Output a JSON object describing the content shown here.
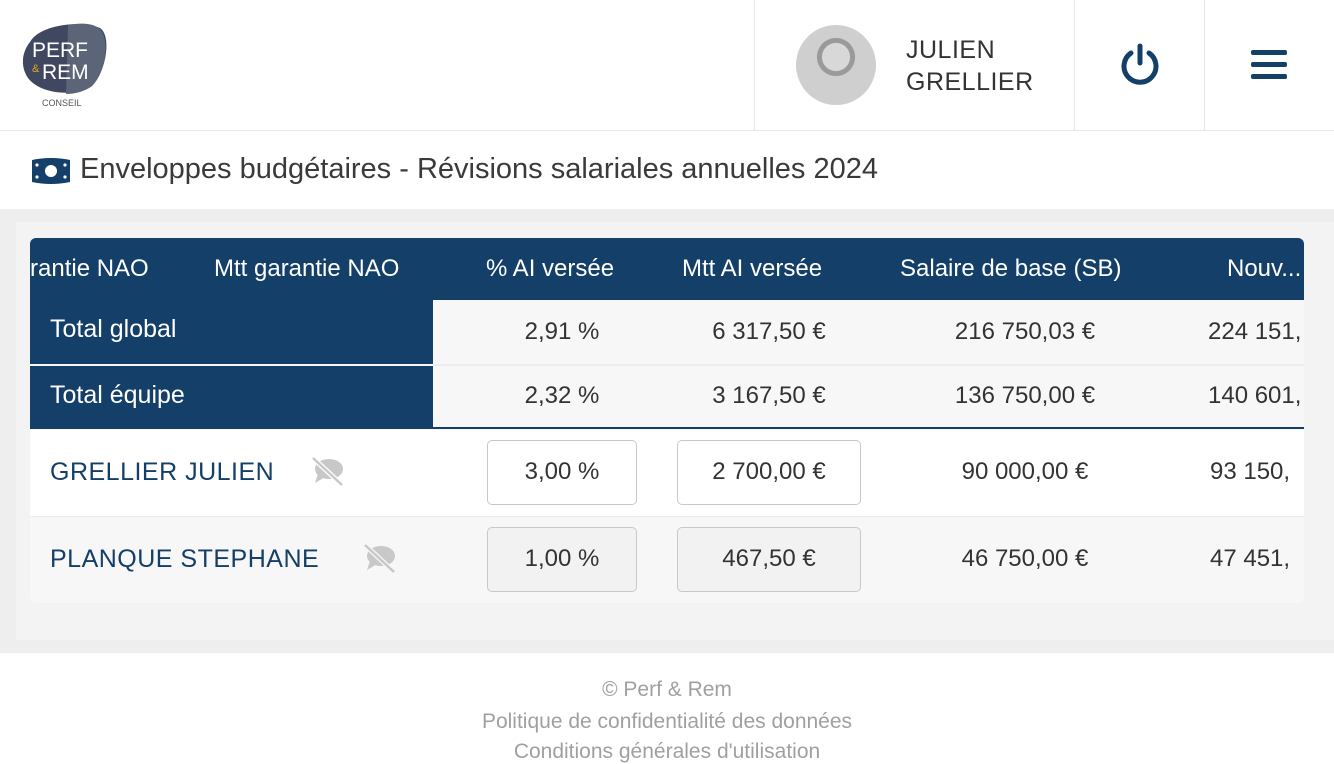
{
  "header": {
    "logo": {
      "line1": "PERF",
      "amp": "&",
      "line2": "REM",
      "sub": "CONSEIL"
    },
    "user": {
      "first": "JULIEN",
      "last": "GRELLIER"
    },
    "icons": {
      "power": "power-icon",
      "menu": "hamburger-menu-icon"
    }
  },
  "page": {
    "title": "Enveloppes budgétaires - Révisions salariales annuelles 2024",
    "icon": "money-bill-icon"
  },
  "table": {
    "columns": [
      "% garantie NAO",
      "Mtt garantie NAO",
      "% AI versée",
      "Mtt AI versée",
      "Salaire de base (SB)",
      "Nouv..."
    ],
    "columns_visible": [
      "rantie NAO",
      "Mtt garantie NAO",
      "% AI versée",
      "Mtt AI versée",
      "Salaire de base (SB)",
      "Nouv."
    ],
    "totals": [
      {
        "label": "Total global",
        "pct_ai": "2,91 %",
        "mtt_ai": "6 317,50 €",
        "sb": "216 750,03 €",
        "nouv": "224 151,"
      },
      {
        "label": "Total équipe",
        "pct_ai": "2,32 %",
        "mtt_ai": "3 167,50 €",
        "sb": "136 750,00 €",
        "nouv": "140 601,"
      }
    ],
    "rows": [
      {
        "name": "GRELLIER JULIEN",
        "pct_ai": "3,00 %",
        "mtt_ai": "2 700,00 €",
        "sb": "90 000,00 €",
        "nouv": "93 150,",
        "icon": "comment-slash-icon"
      },
      {
        "name": "PLANQUE STEPHANE",
        "pct_ai": "1,00 %",
        "mtt_ai": "467,50 €",
        "sb": "46 750,00 €",
        "nouv": "47 451,",
        "icon": "comment-slash-icon"
      }
    ]
  },
  "footer": {
    "copyright": "© Perf & Rem",
    "privacy": "Politique de confidentialité des données",
    "terms": "Conditions générales d'utilisation"
  },
  "colors": {
    "primary": "#143f69",
    "muted": "#a0a0a0"
  }
}
